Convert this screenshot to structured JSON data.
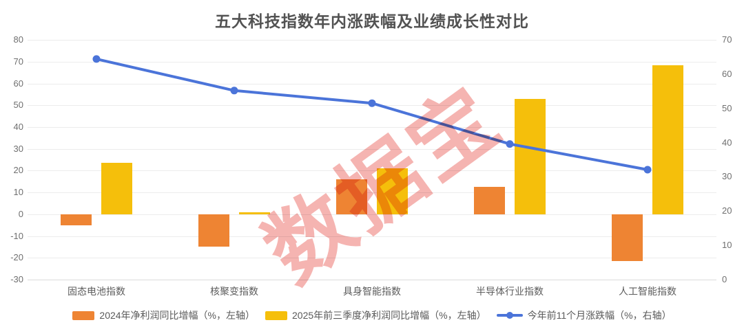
{
  "title": "五大科技指数年内涨跌幅及业绩成长性对比",
  "watermark": "数据宝",
  "colors": {
    "bar_2024": "#EE8433",
    "bar_2025": "#F5BF0B",
    "line": "#4B74D9",
    "grid": "#ECECEC",
    "axis_line": "#DBDBDB",
    "watermark": "rgba(238,126,121,0.58)"
  },
  "chart_data": {
    "type": "bar+line combo",
    "title": "五大科技指数年内涨跌幅及业绩成长性对比",
    "categories": [
      "固态电池指数",
      "核聚变指数",
      "具身智能指数",
      "半导体行业指数",
      "人工智能指数"
    ],
    "series": [
      {
        "name": "2024年净利润同比增幅（%，左轴）",
        "type": "bar",
        "axis": "left",
        "color_key": "bar_2024",
        "values": [
          -5,
          -15,
          16,
          12.5,
          -21.5
        ]
      },
      {
        "name": "2025年前三季度净利润同比增幅（%，左轴）",
        "type": "bar",
        "axis": "left",
        "color_key": "bar_2025",
        "values": [
          23.7,
          0.8,
          21,
          53,
          68.5
        ]
      },
      {
        "name": "今年前11个月涨跌幅（%，右轴）",
        "type": "line",
        "axis": "right",
        "color_key": "line",
        "values": [
          64.4,
          55.2,
          51.5,
          39.6,
          32.1
        ]
      }
    ],
    "left_axis": {
      "min": -30,
      "max": 80,
      "interval": 10,
      "labels": [
        "80",
        "70",
        "60",
        "50",
        "40",
        "30",
        "20",
        "10",
        "0",
        "-10",
        "-20",
        "-30"
      ]
    },
    "right_axis": {
      "min": 0,
      "max": 70,
      "interval": 10,
      "labels": [
        "70",
        "60",
        "50",
        "40",
        "30",
        "20",
        "10",
        "0"
      ]
    },
    "grid": true,
    "legend_position": "bottom"
  }
}
